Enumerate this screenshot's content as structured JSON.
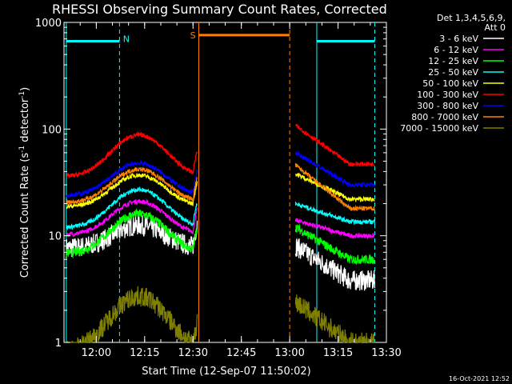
{
  "chart_data": {
    "type": "line",
    "title": "RHESSI Observing Summary Count Rates, Corrected",
    "xlabel": "Start Time (12-Sep-07 11:50:02)",
    "ylabel_main": "Corrected Count Rate (s",
    "ylabel_sup1": "-1",
    "ylabel_mid": " detector",
    "ylabel_sup2": "-1",
    "ylabel_end": ")",
    "yscale": "log",
    "ylim": [
      1,
      1000
    ],
    "xlim": [
      11.833,
      13.5
    ],
    "xticks": [
      {
        "v": 12.0,
        "label": "12:00"
      },
      {
        "v": 12.25,
        "label": "12:15"
      },
      {
        "v": 12.5,
        "label": "12:30"
      },
      {
        "v": 12.75,
        "label": "12:45"
      },
      {
        "v": 13.0,
        "label": "13:00"
      },
      {
        "v": 13.25,
        "label": "13:15"
      },
      {
        "v": 13.5,
        "label": "13:30"
      }
    ],
    "yticks": [
      {
        "v": 1,
        "label": "1"
      },
      {
        "v": 10,
        "label": "10"
      },
      {
        "v": 100,
        "label": "100"
      },
      {
        "v": 1000,
        "label": "1000"
      }
    ],
    "legend_header": [
      "Det 1,3,4,5,6,9,",
      "Att 0"
    ],
    "legend_position": "right",
    "gap": [
      12.53,
      13.02
    ],
    "series": [
      {
        "name": "3 - 6 keV",
        "color": "#ffffff",
        "peak": 12.5,
        "pre_end": 9,
        "post_start": 8.0,
        "post_end": 3.8
      },
      {
        "name": "6 - 12 keV",
        "color": "#ff00ff",
        "peak": 21.0,
        "pre_end": 12,
        "post_start": 14.0,
        "post_end": 10.0
      },
      {
        "name": "12 - 25 keV",
        "color": "#00ff00",
        "peak": 16.0,
        "pre_end": 8,
        "post_start": 12.0,
        "post_end": 6.0
      },
      {
        "name": "25 - 50 keV",
        "color": "#00ffff",
        "peak": 27.0,
        "pre_end": 14,
        "post_start": 20.0,
        "post_end": 13.5
      },
      {
        "name": "50 - 100 keV",
        "color": "#ffff00",
        "peak": 37.0,
        "pre_end": 22,
        "post_start": 38.0,
        "post_end": 22.0
      },
      {
        "name": "100 - 300 keV",
        "color": "#ff0000",
        "peak": 88.0,
        "pre_end": 42,
        "post_start": 108.0,
        "post_end": 47.0
      },
      {
        "name": "300 - 800 keV",
        "color": "#0000ff",
        "peak": 48.0,
        "pre_end": 28,
        "post_start": 60.0,
        "post_end": 30.0
      },
      {
        "name": "800 - 7000 keV",
        "color": "#ff8000",
        "peak": 42.0,
        "pre_end": 24,
        "post_start": 46.0,
        "post_end": 18.0
      },
      {
        "name": "7000 - 15000 keV",
        "color": "#808000",
        "peak": 2.7,
        "pre_end": 1.0,
        "post_start": 2.4,
        "post_end": 1.0
      }
    ],
    "annotations": [
      {
        "label": "N",
        "color": "#00ffff",
        "text_x": 12.29
      },
      {
        "label": "S",
        "color": "#ff8000",
        "text_x": 12.485
      }
    ],
    "timestamp": "16-Oct-2021 12:52"
  }
}
